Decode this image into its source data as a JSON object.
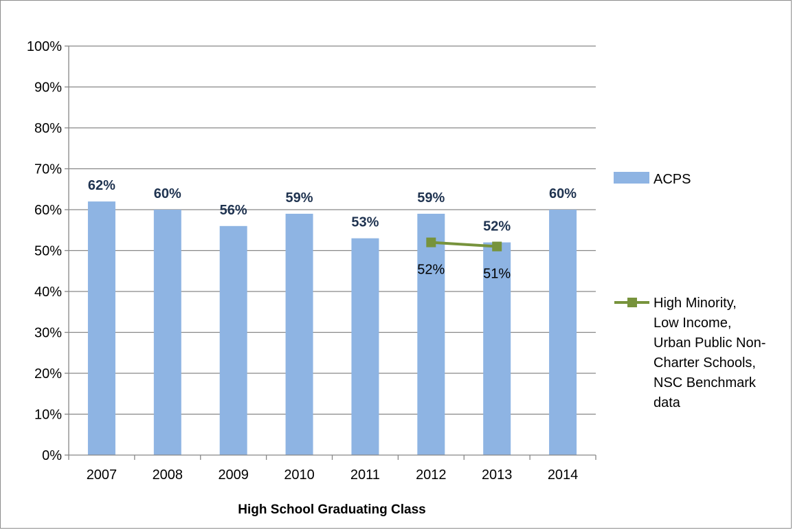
{
  "chart_data": {
    "type": "bar",
    "title": "",
    "xlabel": "High School Graduating Class",
    "ylabel": "",
    "ylim": [
      0,
      100
    ],
    "y_ticks": [
      "0%",
      "10%",
      "20%",
      "30%",
      "40%",
      "50%",
      "60%",
      "70%",
      "80%",
      "90%",
      "100%"
    ],
    "grid": true,
    "legend_position": "right",
    "categories": [
      "2007",
      "2008",
      "2009",
      "2010",
      "2011",
      "2012",
      "2013",
      "2014"
    ],
    "series": [
      {
        "name": "ACPS",
        "type": "bar",
        "color": "#8eb4e3",
        "values": [
          62,
          60,
          56,
          59,
          53,
          59,
          52,
          60
        ],
        "data_labels": [
          "62%",
          "60%",
          "56%",
          "59%",
          "53%",
          "59%",
          "52%",
          "60%"
        ]
      },
      {
        "name": "High Minority, Low Income, Urban Public Non-Charter Schools, NSC Benchmark data",
        "legend_lines": [
          "High Minority,",
          "Low Income,",
          "Urban Public Non-",
          "Charter Schools,",
          "NSC Benchmark",
          "data"
        ],
        "type": "line",
        "color": "#77933c",
        "values": [
          null,
          null,
          null,
          null,
          null,
          52,
          51,
          null
        ],
        "data_labels": [
          null,
          null,
          null,
          null,
          null,
          "52%",
          "51%",
          null
        ]
      }
    ]
  }
}
